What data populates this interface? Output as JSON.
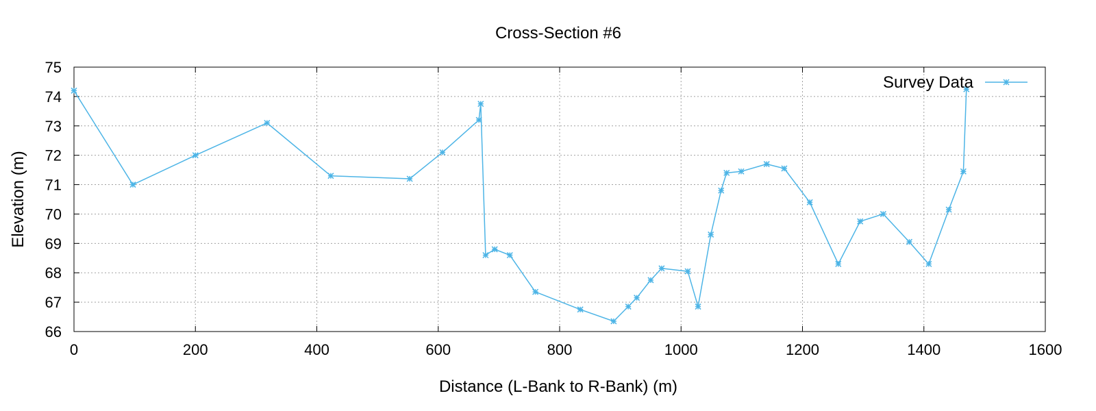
{
  "chart_data": {
    "type": "line",
    "title": "Cross-Section #6",
    "xlabel": "Distance (L-Bank to R-Bank) (m)",
    "ylabel": "Elevation (m)",
    "xlim": [
      0,
      1600
    ],
    "ylim": [
      66,
      75
    ],
    "xticks": [
      0,
      200,
      400,
      600,
      800,
      1000,
      1200,
      1400,
      1600
    ],
    "yticks": [
      66,
      67,
      68,
      69,
      70,
      71,
      72,
      73,
      74,
      75
    ],
    "grid": true,
    "legend_position": "top-right",
    "series": [
      {
        "name": "Survey Data",
        "color": "#4cb4e6",
        "marker": "asterisk",
        "points": [
          [
            0,
            74.2
          ],
          [
            97,
            71.0
          ],
          [
            200,
            72.0
          ],
          [
            318,
            73.1
          ],
          [
            423,
            71.3
          ],
          [
            553,
            71.2
          ],
          [
            607,
            72.1
          ],
          [
            667,
            73.2
          ],
          [
            670,
            73.75
          ],
          [
            678,
            68.6
          ],
          [
            693,
            68.8
          ],
          [
            718,
            68.6
          ],
          [
            760,
            67.35
          ],
          [
            834,
            66.75
          ],
          [
            889,
            66.35
          ],
          [
            913,
            66.85
          ],
          [
            927,
            67.15
          ],
          [
            950,
            67.75
          ],
          [
            968,
            68.15
          ],
          [
            1011,
            68.05
          ],
          [
            1028,
            66.85
          ],
          [
            1049,
            69.3
          ],
          [
            1066,
            70.8
          ],
          [
            1075,
            71.4
          ],
          [
            1099,
            71.45
          ],
          [
            1141,
            71.7
          ],
          [
            1170,
            71.55
          ],
          [
            1212,
            70.4
          ],
          [
            1259,
            68.3
          ],
          [
            1295,
            69.75
          ],
          [
            1333,
            70.0
          ],
          [
            1376,
            69.05
          ],
          [
            1408,
            68.3
          ],
          [
            1441,
            70.15
          ],
          [
            1465,
            71.45
          ],
          [
            1470,
            74.25
          ]
        ]
      }
    ]
  }
}
